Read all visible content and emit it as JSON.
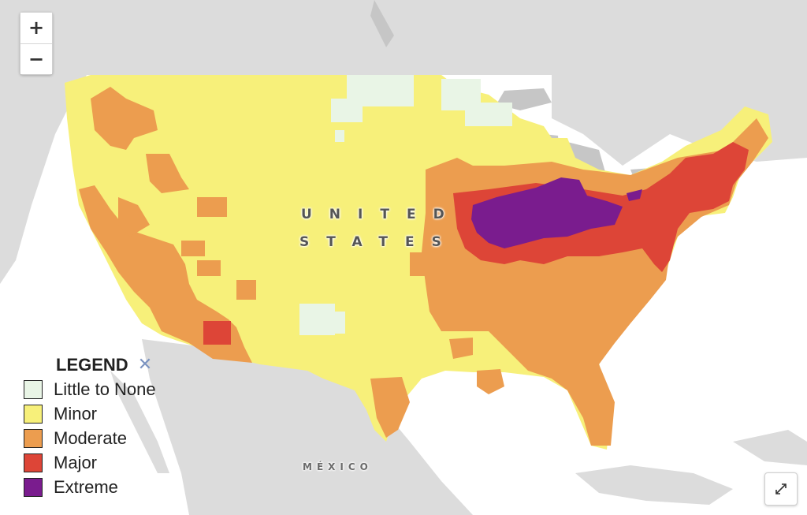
{
  "controls": {
    "zoom_in": "+",
    "zoom_out": "−"
  },
  "places": {
    "country_line1": "UNITED",
    "country_line2": "STATES",
    "neighbor": "MÉXICO"
  },
  "legend": {
    "title": "LEGEND",
    "close": "✕",
    "items": [
      {
        "label": "Little to None",
        "color": "#e9f5e6"
      },
      {
        "label": "Minor",
        "color": "#f7f07a"
      },
      {
        "label": "Moderate",
        "color": "#ec9d4f"
      },
      {
        "label": "Major",
        "color": "#dd4537"
      },
      {
        "label": "Extreme",
        "color": "#7a1c8e"
      }
    ]
  },
  "colors": {
    "land": "#dcdcdc",
    "water": "#ffffff",
    "accent_close": "#7b93c0"
  },
  "icons": {
    "fullscreen": "expand-arrows-icon"
  }
}
